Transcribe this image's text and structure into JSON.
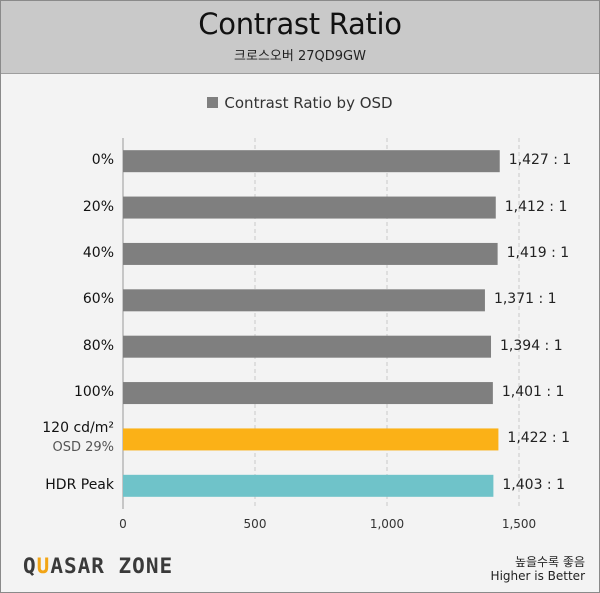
{
  "header": {
    "title": "Contrast Ratio",
    "subtitle": "크로스오버 27QD9GW"
  },
  "brand": {
    "logo_text": "QUASAR ZONE"
  },
  "footer": {
    "note_ko": "높을수록 좋음",
    "note_en": "Higher is Better"
  },
  "colors": {
    "bar_default": "#7f7f7f",
    "bar_highlight": "#fbb117",
    "bar_hdr": "#6fc3c9",
    "grid": "#c8c8c8",
    "header_bg": "#c9c9c9"
  },
  "chart_data": {
    "type": "bar",
    "orientation": "horizontal",
    "legend": {
      "position": "top",
      "entries": [
        "Contrast Ratio by OSD"
      ]
    },
    "categories": [
      "0%",
      "20%",
      "40%",
      "60%",
      "80%",
      "100%",
      "120 cd/m²",
      "HDR Peak"
    ],
    "category_sublabels": [
      "",
      "",
      "",
      "",
      "",
      "",
      "OSD 29%",
      ""
    ],
    "series": [
      {
        "name": "Contrast Ratio by OSD",
        "values": [
          1427,
          1412,
          1419,
          1371,
          1394,
          1401,
          1422,
          1403
        ],
        "value_labels": [
          "1,427 : 1",
          "1,412 : 1",
          "1,419 : 1",
          "1,371 : 1",
          "1,394 : 1",
          "1,401 : 1",
          "1,422 : 1",
          "1,403 : 1"
        ],
        "bar_colors": [
          "#7f7f7f",
          "#7f7f7f",
          "#7f7f7f",
          "#7f7f7f",
          "#7f7f7f",
          "#7f7f7f",
          "#fbb117",
          "#6fc3c9"
        ]
      }
    ],
    "xlim": [
      0,
      1500
    ],
    "xticks": [
      0,
      500,
      1000,
      1500
    ],
    "xtick_labels": [
      "0",
      "500",
      "1,000",
      "1,500"
    ],
    "grid": "vertical dashed"
  }
}
